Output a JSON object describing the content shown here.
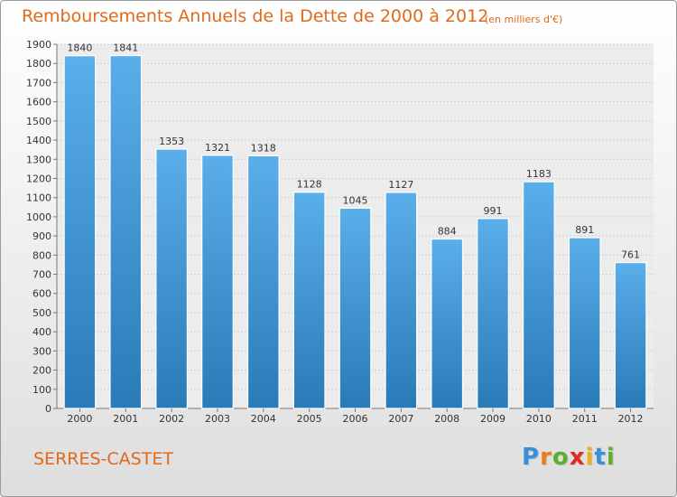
{
  "chart_data": {
    "type": "bar",
    "title": "Remboursements Annuels de la Dette de 2000 à 2012",
    "subtitle": "(en milliers d'€)",
    "categories": [
      "2000",
      "2001",
      "2002",
      "2003",
      "2004",
      "2005",
      "2006",
      "2007",
      "2008",
      "2009",
      "2010",
      "2011",
      "2012"
    ],
    "values": [
      1840,
      1841,
      1353,
      1321,
      1318,
      1128,
      1045,
      1127,
      884,
      991,
      1183,
      891,
      761
    ],
    "ylim": [
      0,
      1900
    ],
    "yticks": [
      0,
      100,
      200,
      300,
      400,
      500,
      600,
      700,
      800,
      900,
      1000,
      1100,
      1200,
      1300,
      1400,
      1500,
      1600,
      1700,
      1800,
      1900
    ],
    "grid": true,
    "bar_color_top": "#5aaeea",
    "bar_color_bottom": "#2a7ab8"
  },
  "footer": {
    "commune": "SERRES-CASTET",
    "brand": {
      "letters": [
        "P",
        "r",
        "o",
        "x",
        "i",
        "t",
        "i"
      ],
      "colors": [
        "#3a8fd8",
        "#f07a1a",
        "#5cb030",
        "#e02a2a",
        "#f0b020",
        "#3a8fd8",
        "#5cb030"
      ]
    }
  }
}
